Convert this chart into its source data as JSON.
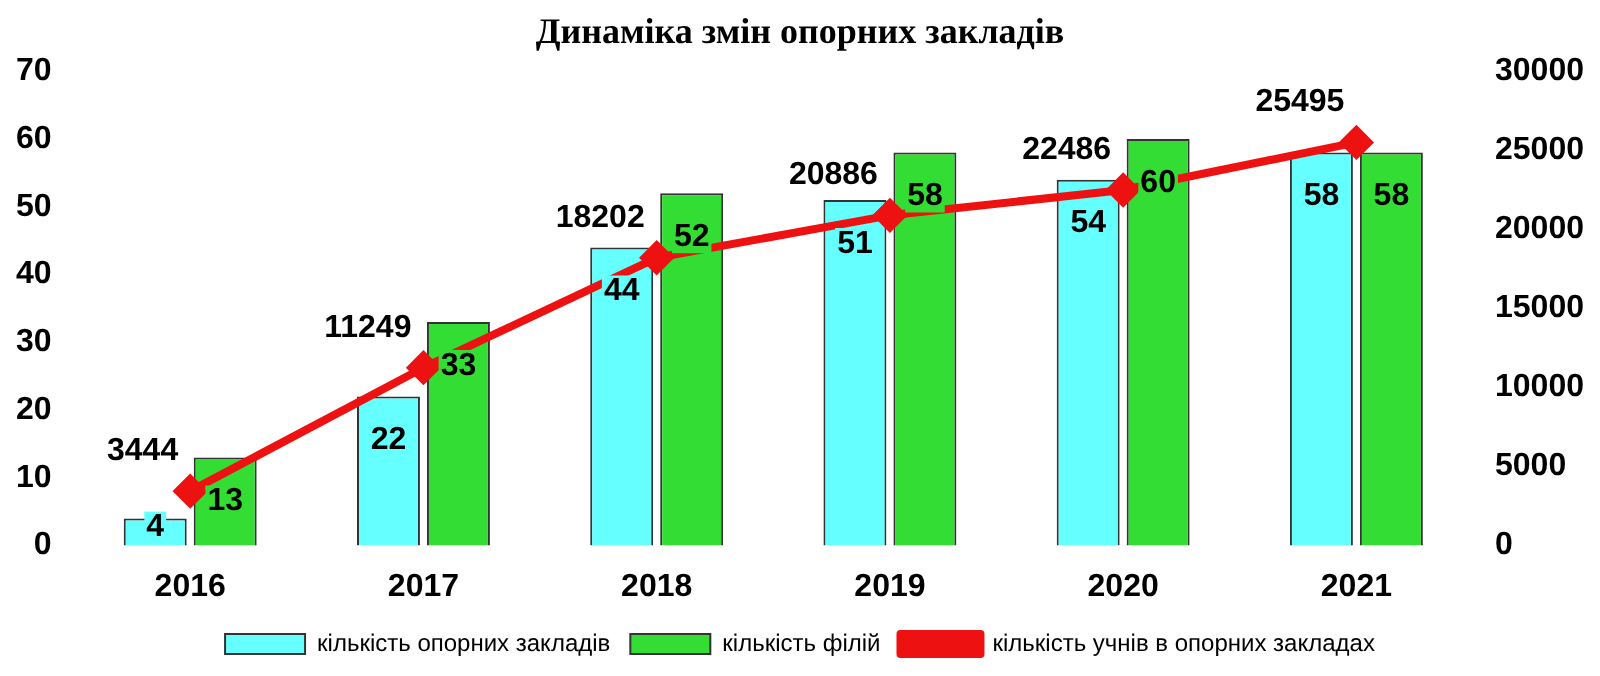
{
  "chart_data": {
    "type": "bar",
    "title": "Динаміка змін опорних закладів",
    "categories": [
      "2016",
      "2017",
      "2018",
      "2019",
      "2020",
      "2021"
    ],
    "series": [
      {
        "name": "кількість опорних закладів",
        "color": "#66ffff",
        "values": [
          4,
          22,
          44,
          51,
          54,
          58
        ]
      },
      {
        "name": "кількість філій",
        "color": "#33dd33",
        "values": [
          13,
          33,
          52,
          58,
          60,
          58
        ]
      },
      {
        "name": "кількість учнів в опорних закладах",
        "color": "#ee1111",
        "type": "line",
        "axis": "y2",
        "values": [
          3444,
          11249,
          18202,
          20886,
          22486,
          25495
        ]
      }
    ],
    "ylim": [
      0,
      70
    ],
    "yticks": [
      0,
      10,
      20,
      30,
      40,
      50,
      60,
      70
    ],
    "y2lim": [
      0,
      30000
    ],
    "y2ticks": [
      0,
      5000,
      10000,
      15000,
      20000,
      25000,
      30000
    ],
    "data_labels": true,
    "legend": "bottom",
    "marker": "diamond",
    "grid": false
  }
}
